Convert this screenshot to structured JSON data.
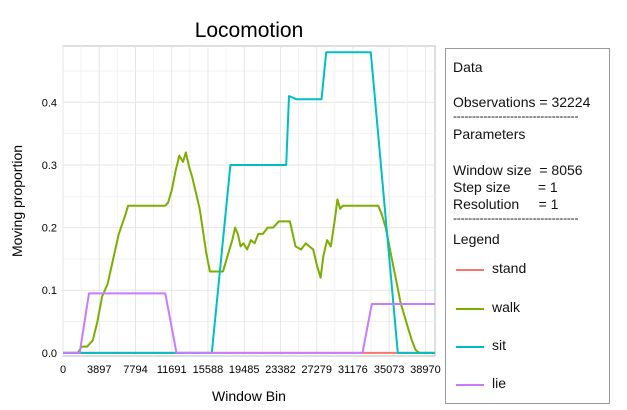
{
  "chart_data": {
    "type": "line",
    "title": "Locomotion",
    "xlabel": "Window Bin",
    "ylabel": "Moving proportion",
    "xlim": [
      0,
      40000
    ],
    "ylim": [
      -0.005,
      0.49
    ],
    "x_ticks": [
      0,
      3897,
      7794,
      11691,
      15588,
      19485,
      23382,
      27279,
      31176,
      35073,
      38970
    ],
    "x_tick_labels": [
      "0",
      "3897",
      "7794",
      "11691",
      "15588",
      "19485",
      "23382",
      "27279",
      "31176",
      "35073",
      "38970"
    ],
    "y_ticks": [
      0.0,
      0.1,
      0.2,
      0.3,
      0.4
    ],
    "y_tick_labels": [
      "0.0",
      "0.1",
      "0.2",
      "0.3",
      "0.4"
    ],
    "grid": true,
    "series": [
      {
        "name": "stand",
        "color": "#f8766d",
        "x": [
          0,
          40000
        ],
        "y": [
          0,
          0
        ]
      },
      {
        "name": "walk",
        "color": "#7cae00",
        "x": [
          0,
          1600,
          2000,
          2600,
          3200,
          3700,
          4200,
          4800,
          5400,
          6000,
          6700,
          7000,
          7600,
          8000,
          8500,
          9200,
          9800,
          10500,
          11000,
          11300,
          11700,
          12100,
          12500,
          12900,
          13200,
          13600,
          13900,
          14300,
          14700,
          15000,
          15400,
          15800,
          16200,
          16700,
          17200,
          17800,
          18200,
          18500,
          18800,
          19100,
          19400,
          19800,
          20200,
          20600,
          21000,
          21500,
          22000,
          22600,
          23200,
          23800,
          24400,
          25000,
          25600,
          26100,
          26500,
          26900,
          27300,
          27700,
          28000,
          28400,
          28800,
          29200,
          29500,
          29800,
          30100,
          30400,
          30700,
          31000,
          31400,
          31700,
          32000,
          32400,
          32700,
          33100,
          33500,
          33900,
          34300,
          34700,
          35100,
          35500,
          35900,
          36300,
          36700,
          37100,
          37500,
          37900,
          38300,
          38600,
          38900,
          40000
        ],
        "y": [
          0,
          0,
          0.01,
          0.01,
          0.02,
          0.05,
          0.09,
          0.11,
          0.15,
          0.19,
          0.22,
          0.235,
          0.235,
          0.235,
          0.235,
          0.235,
          0.235,
          0.235,
          0.235,
          0.24,
          0.26,
          0.29,
          0.315,
          0.305,
          0.32,
          0.295,
          0.28,
          0.255,
          0.23,
          0.2,
          0.16,
          0.13,
          0.13,
          0.13,
          0.13,
          0.16,
          0.18,
          0.2,
          0.19,
          0.17,
          0.175,
          0.165,
          0.18,
          0.175,
          0.19,
          0.19,
          0.2,
          0.2,
          0.21,
          0.21,
          0.21,
          0.17,
          0.165,
          0.175,
          0.17,
          0.165,
          0.14,
          0.12,
          0.155,
          0.18,
          0.17,
          0.21,
          0.245,
          0.23,
          0.235,
          0.235,
          0.235,
          0.235,
          0.235,
          0.235,
          0.235,
          0.235,
          0.235,
          0.235,
          0.235,
          0.235,
          0.22,
          0.2,
          0.17,
          0.14,
          0.11,
          0.08,
          0.06,
          0.04,
          0.02,
          0.005,
          0,
          0,
          0,
          0
        ]
      },
      {
        "name": "sit",
        "color": "#00bfc4",
        "x": [
          0,
          16000,
          18000,
          20500,
          24000,
          24300,
          25100,
          27800,
          28300,
          33100,
          36000,
          37000,
          40000
        ],
        "y": [
          0,
          0,
          0.3,
          0.3,
          0.3,
          0.41,
          0.405,
          0.405,
          0.48,
          0.48,
          0,
          0,
          0
        ],
        "note_x": [
          0,
          16000,
          18100,
          22000,
          23200,
          24300,
          25000,
          27800,
          28200,
          31500,
          34800,
          40000
        ],
        "note_y": [
          0,
          0,
          0.3,
          0.3,
          0.3,
          0.41,
          0.405,
          0.405,
          0.48,
          0.48,
          0,
          0
        ]
      },
      {
        "name": "lie",
        "color": "#c77cff",
        "x": [
          0,
          1800,
          2800,
          11000,
          12200,
          32200,
          33200,
          41400,
          42400
        ],
        "y": [
          0,
          0,
          0.095,
          0.095,
          0,
          0,
          0.078,
          0.078,
          0
        ]
      }
    ]
  },
  "panel": {
    "data_heading": "Data",
    "observations": "Observations = 32224",
    "divider": "---------------------------------",
    "parameters_heading": "Parameters",
    "window_size": "Window size  = 8056",
    "step_size": "Step size       = 1",
    "resolution": "Resolution     = 1",
    "divider2": "---------------------------------",
    "legend_heading": "Legend",
    "legend": [
      {
        "label": "stand",
        "color": "#f8766d"
      },
      {
        "label": "walk",
        "color": "#7cae00"
      },
      {
        "label": "sit",
        "color": "#00bfc4"
      },
      {
        "label": "lie",
        "color": "#c77cff"
      }
    ]
  }
}
